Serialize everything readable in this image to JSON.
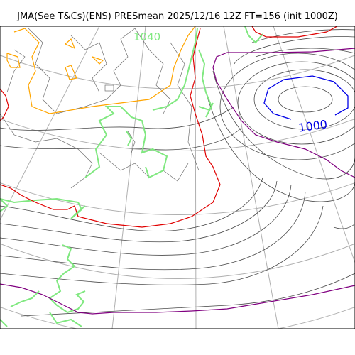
{
  "title": "JMA(See T&Cs)(ENS) PRESmean 2025/12/16 12Z FT=156 (init 1000Z)",
  "labels": {
    "isobar_1040": "1040",
    "isobar_1000": "1000"
  },
  "colors": {
    "land_outline": "#6f6f6f",
    "coast": "#80e880",
    "graticule": "#b0b0b0",
    "isobar": "#4a4a4a",
    "isobar_1040": "#ffa500",
    "isobar_1000": "#0000e6",
    "isobar_1020": "#e00000",
    "isobar_1016": "#800080"
  }
}
